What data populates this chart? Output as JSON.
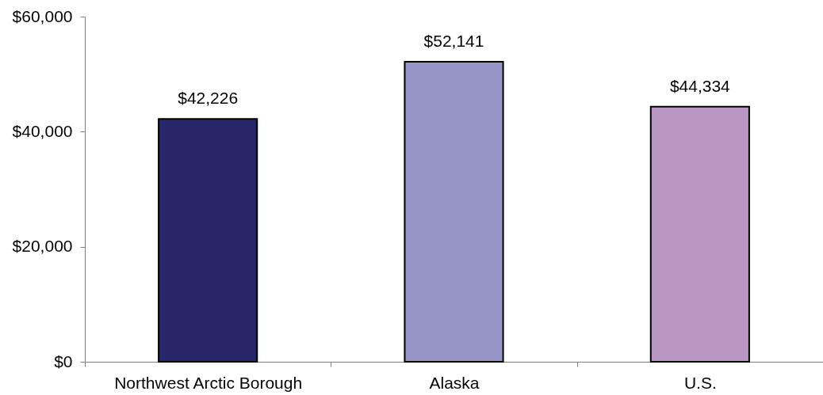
{
  "chart_data": {
    "type": "bar",
    "categories": [
      "Northwest Arctic Borough",
      "Alaska",
      "U.S."
    ],
    "values": [
      42226,
      52141,
      44334
    ],
    "colors": [
      "#262668",
      "#9794c8",
      "#b897c5"
    ],
    "value_labels": [
      "$42,226",
      "$52,141",
      "$44,334"
    ],
    "ylim": [
      0,
      60000
    ],
    "yticks": [
      {
        "value": 0,
        "label": "$0"
      },
      {
        "value": 20000,
        "label": "$20,000"
      },
      {
        "value": 40000,
        "label": "$40,000"
      },
      {
        "value": 60000,
        "label": "$60,000"
      }
    ]
  }
}
